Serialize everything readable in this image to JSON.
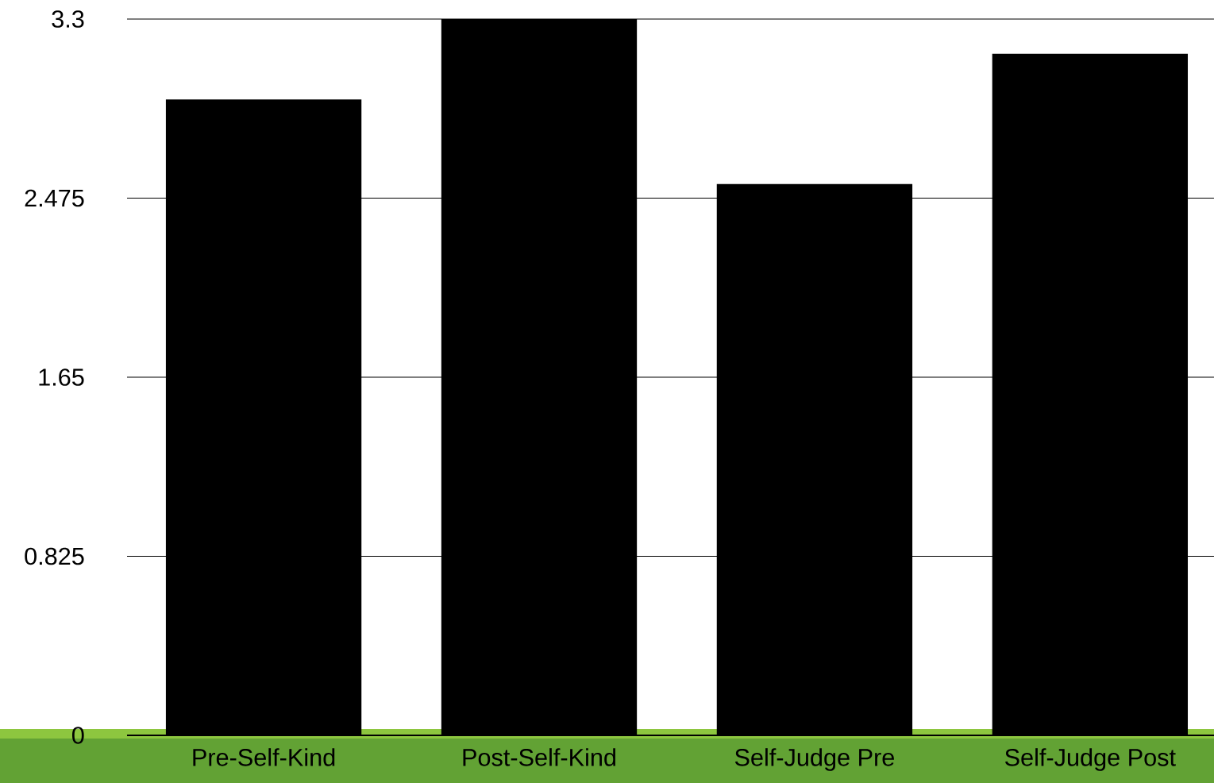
{
  "chart_data": {
    "type": "bar",
    "categories": [
      "Pre-Self-Kind",
      "Post-Self-Kind",
      "Self-Judge Pre",
      "Self-Judge Post"
    ],
    "values": [
      2.93,
      3.3,
      2.54,
      3.14
    ],
    "color": "#000000",
    "ylim": [
      0,
      3.3
    ],
    "yticks": [
      0,
      0.825,
      1.65,
      2.475,
      3.3
    ],
    "grid": "y"
  }
}
